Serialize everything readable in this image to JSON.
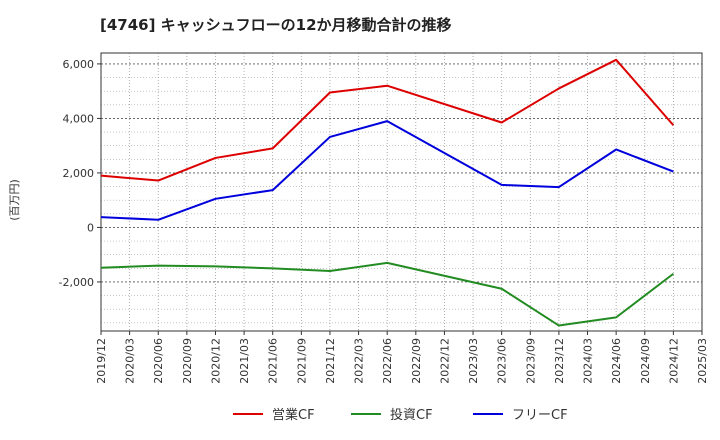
{
  "chart_data": {
    "type": "line",
    "title": "[4746]  キャッシュフローの12か月移動合計の推移",
    "ylabel": "(百万円)",
    "xlabel": "",
    "ylim": [
      -3800,
      6400
    ],
    "yticks": [
      -2000,
      0,
      2000,
      4000,
      6000
    ],
    "ytick_labels": [
      "-2,000",
      "0",
      "2,000",
      "4,000",
      "6,000"
    ],
    "x_tick_labels": [
      "2019/12",
      "2020/03",
      "2020/06",
      "2020/09",
      "2020/12",
      "2021/03",
      "2021/06",
      "2021/09",
      "2021/12",
      "2022/03",
      "2022/06",
      "2022/09",
      "2022/12",
      "2023/03",
      "2023/06",
      "2023/09",
      "2023/12",
      "2024/03",
      "2024/06",
      "2024/09",
      "2024/12",
      "2025/03"
    ],
    "x": [
      "2019/12",
      "2020/06",
      "2020/12",
      "2021/06",
      "2021/12",
      "2022/06",
      "2023/06",
      "2023/12",
      "2024/06",
      "2024/12"
    ],
    "grid": true,
    "legend_position": "bottom",
    "series": [
      {
        "name": "営業CF",
        "color": "#dd0000",
        "values": [
          1900,
          1720,
          2550,
          2900,
          4950,
          5200,
          3850,
          5100,
          6150,
          3750
        ]
      },
      {
        "name": "投資CF",
        "color": "#228b22",
        "values": [
          -1480,
          -1400,
          -1430,
          -1500,
          -1600,
          -1300,
          -2250,
          -3600,
          -3300,
          -1700
        ]
      },
      {
        "name": "フリーCF",
        "color": "#0000dd",
        "values": [
          380,
          280,
          1050,
          1370,
          3320,
          3900,
          1560,
          1480,
          2860,
          2050
        ]
      }
    ]
  }
}
